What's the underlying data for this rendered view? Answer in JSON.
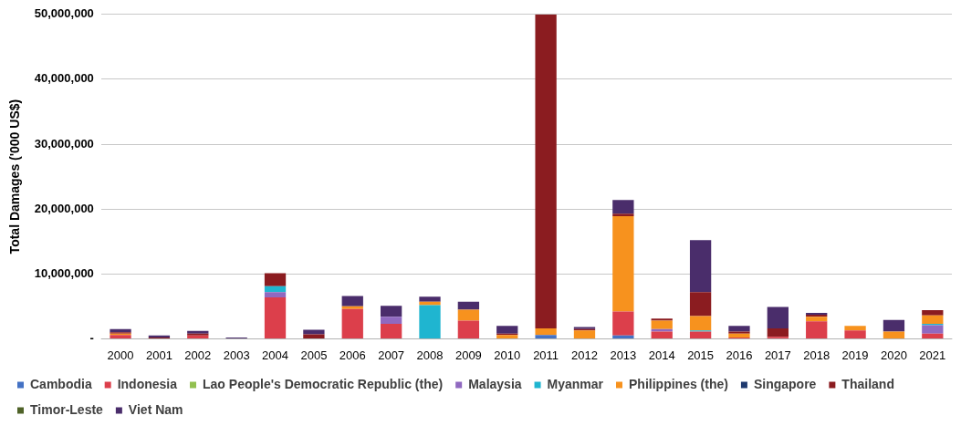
{
  "chart_data": {
    "type": "bar",
    "stacked": true,
    "ylabel": "Total Damages ('000 US$)",
    "categories": [
      "2000",
      "2001",
      "2002",
      "2003",
      "2004",
      "2005",
      "2006",
      "2007",
      "2008",
      "2009",
      "2010",
      "2011",
      "2012",
      "2013",
      "2014",
      "2015",
      "2016",
      "2017",
      "2018",
      "2019",
      "2020",
      "2021"
    ],
    "series": [
      {
        "name": "Cambodia",
        "color": "#4472c4",
        "values": [
          0,
          0,
          0,
          0,
          0,
          0,
          0,
          0,
          0,
          0,
          0,
          600000,
          0,
          500000,
          0,
          0,
          0,
          0,
          0,
          0,
          0,
          0
        ]
      },
      {
        "name": "Indonesia",
        "color": "#dc3f4b",
        "values": [
          600000,
          0,
          500000,
          0,
          6400000,
          null,
          4600000,
          2300000,
          0,
          2800000,
          0,
          0,
          0,
          3700000,
          1100000,
          1100000,
          200000,
          300000,
          2700000,
          1300000,
          0,
          800000
        ]
      },
      {
        "name": "Lao People's Democratic Republic (the)",
        "color": "#92c050",
        "values": [
          0,
          0,
          0,
          0,
          0,
          0,
          0,
          0,
          0,
          0,
          0,
          0,
          0,
          0,
          0,
          0,
          0,
          0,
          0,
          0,
          0,
          0
        ]
      },
      {
        "name": "Malaysia",
        "color": "#9069c0",
        "values": [
          0,
          0,
          0,
          0,
          800000,
          0,
          0,
          1100000,
          0,
          0,
          0,
          0,
          0,
          0,
          400000,
          0,
          0,
          0,
          0,
          0,
          0,
          1300000
        ]
      },
      {
        "name": "Myanmar",
        "color": "#1fb5d0",
        "values": [
          0,
          0,
          0,
          0,
          900000,
          0,
          0,
          0,
          5200000,
          0,
          0,
          0,
          0,
          0,
          0,
          200000,
          0,
          0,
          0,
          0,
          0,
          200000
        ]
      },
      {
        "name": "Philippines (the)",
        "color": "#f7921e",
        "values": [
          200000,
          0,
          0,
          0,
          0,
          0,
          400000,
          0,
          500000,
          1700000,
          600000,
          1000000,
          1300000,
          14700000,
          1300000,
          2200000,
          600000,
          0,
          700000,
          700000,
          1100000,
          1300000
        ]
      },
      {
        "name": "Singapore",
        "color": "#1f3a6e",
        "values": [
          0,
          0,
          0,
          0,
          0,
          0,
          0,
          0,
          0,
          0,
          0,
          0,
          0,
          0,
          0,
          0,
          0,
          0,
          0,
          0,
          0,
          0
        ]
      },
      {
        "name": "Thailand",
        "color": "#8b1c20",
        "values": [
          200000,
          200000,
          300000,
          0,
          2000000,
          700000,
          0,
          0,
          0,
          0,
          200000,
          48400000,
          200000,
          400000,
          300000,
          3700000,
          300000,
          1300000,
          300000,
          null,
          0,
          800000
        ]
      },
      {
        "name": "Timor-Leste",
        "color": "#4f6228",
        "values": [
          0,
          0,
          0,
          0,
          0,
          0,
          0,
          0,
          0,
          0,
          0,
          0,
          0,
          0,
          0,
          0,
          0,
          0,
          0,
          0,
          0,
          0
        ]
      },
      {
        "name": "Viet Nam",
        "color": "#4a2d6b",
        "values": [
          500000,
          300000,
          400000,
          200000,
          0,
          700000,
          1600000,
          1700000,
          800000,
          1200000,
          1200000,
          0,
          300000,
          2100000,
          0,
          8000000,
          900000,
          3300000,
          300000,
          0,
          1800000,
          0
        ]
      }
    ],
    "ylim": [
      0,
      50000000
    ],
    "yticks": [
      {
        "value": 0,
        "label": "-"
      },
      {
        "value": 10000000,
        "label": "10,000,000"
      },
      {
        "value": 20000000,
        "label": "20,000,000"
      },
      {
        "value": 30000000,
        "label": "30,000,000"
      },
      {
        "value": 40000000,
        "label": "40,000,000"
      },
      {
        "value": 50000000,
        "label": "50,000,000"
      }
    ],
    "grid": "y",
    "legend": "bottom"
  }
}
